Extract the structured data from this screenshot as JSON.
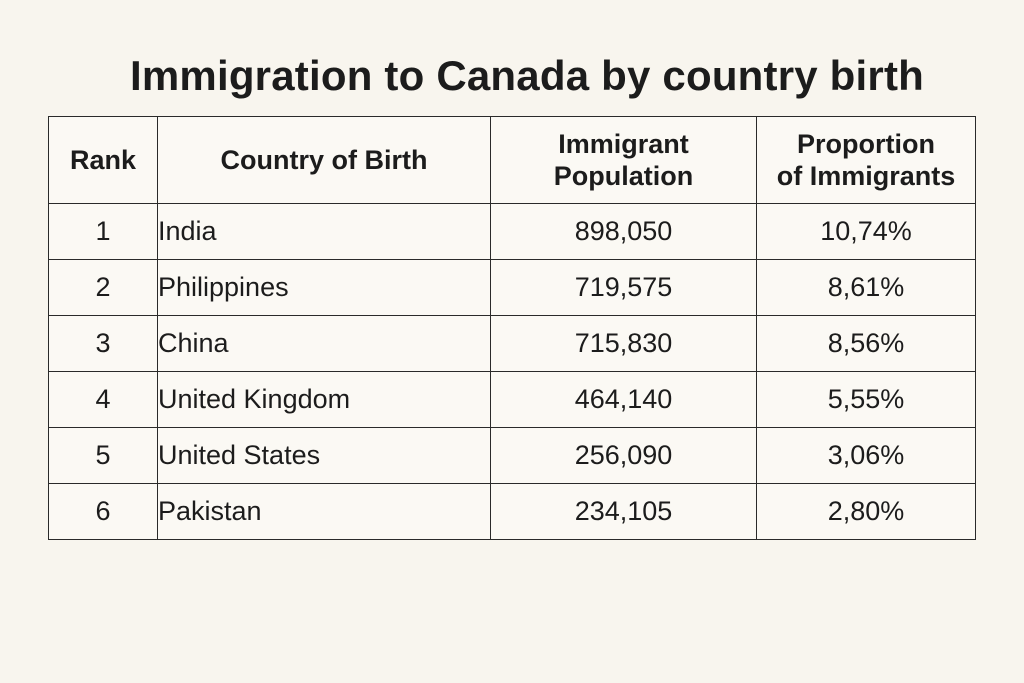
{
  "chart_data": {
    "type": "table",
    "title": "Immigration to Canada by country birth",
    "columns": [
      {
        "lines": [
          "Rank"
        ]
      },
      {
        "lines": [
          "Country of Birth"
        ]
      },
      {
        "lines": [
          "Immigrant",
          "Population"
        ]
      },
      {
        "lines": [
          "Proportion",
          "of Immigrants"
        ]
      }
    ],
    "rows": [
      {
        "rank": "1",
        "country": "India",
        "population": "898,050",
        "proportion": "10,74%"
      },
      {
        "rank": "2",
        "country": "Philippines",
        "population": "719,575",
        "proportion": "8,61%"
      },
      {
        "rank": "3",
        "country": "China",
        "population": "715,830",
        "proportion": "8,56%"
      },
      {
        "rank": "4",
        "country": "United Kingdom",
        "population": "464,140",
        "proportion": "5,55%"
      },
      {
        "rank": "5",
        "country": "United States",
        "population": "256,090",
        "proportion": "3,06%"
      },
      {
        "rank": "6",
        "country": "Pakistan",
        "population": "234,105",
        "proportion": "2,80%"
      }
    ]
  }
}
